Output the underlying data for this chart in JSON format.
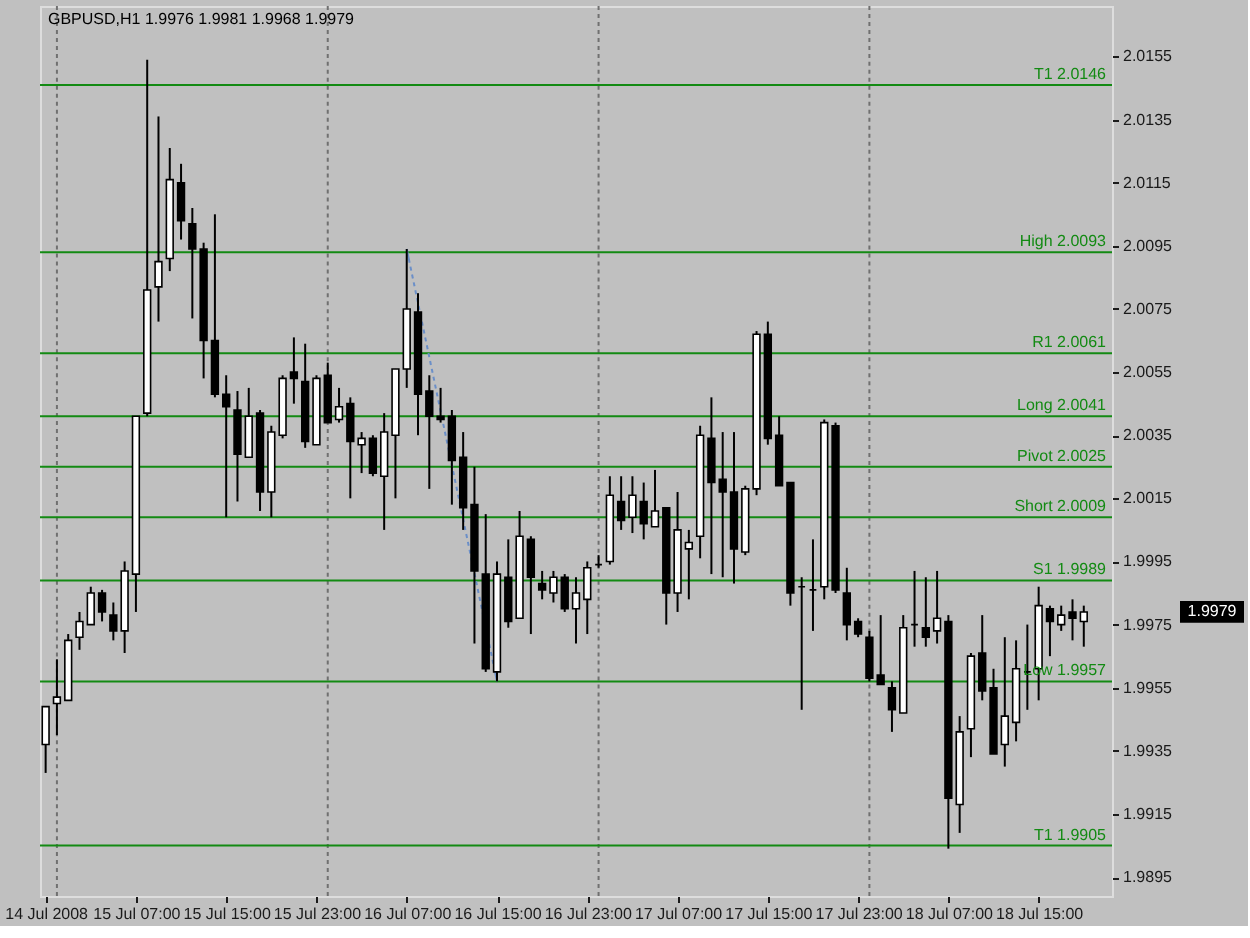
{
  "chart_data": {
    "type": "candlestick",
    "title": "GBPUSD,H1 1.9976 1.9981 1.9968 1.9979",
    "x": [
      "2008-07-14T23:00",
      "2008-07-15T00:00",
      "2008-07-15T01:00",
      "2008-07-15T02:00",
      "2008-07-15T03:00",
      "2008-07-15T04:00",
      "2008-07-15T05:00",
      "2008-07-15T06:00",
      "2008-07-15T07:00",
      "2008-07-15T08:00",
      "2008-07-15T09:00",
      "2008-07-15T10:00",
      "2008-07-15T11:00",
      "2008-07-15T12:00",
      "2008-07-15T13:00",
      "2008-07-15T14:00",
      "2008-07-15T15:00",
      "2008-07-15T16:00",
      "2008-07-15T17:00",
      "2008-07-15T18:00",
      "2008-07-15T19:00",
      "2008-07-15T20:00",
      "2008-07-15T21:00",
      "2008-07-15T22:00",
      "2008-07-15T23:00",
      "2008-07-16T00:00",
      "2008-07-16T01:00",
      "2008-07-16T02:00",
      "2008-07-16T03:00",
      "2008-07-16T04:00",
      "2008-07-16T05:00",
      "2008-07-16T06:00",
      "2008-07-16T07:00",
      "2008-07-16T08:00",
      "2008-07-16T09:00",
      "2008-07-16T10:00",
      "2008-07-16T11:00",
      "2008-07-16T12:00",
      "2008-07-16T13:00",
      "2008-07-16T14:00",
      "2008-07-16T15:00",
      "2008-07-16T16:00",
      "2008-07-16T17:00",
      "2008-07-16T18:00",
      "2008-07-16T19:00",
      "2008-07-16T20:00",
      "2008-07-16T21:00",
      "2008-07-16T22:00",
      "2008-07-16T23:00",
      "2008-07-17T00:00",
      "2008-07-17T01:00",
      "2008-07-17T02:00",
      "2008-07-17T03:00",
      "2008-07-17T04:00",
      "2008-07-17T05:00",
      "2008-07-17T06:00",
      "2008-07-17T07:00",
      "2008-07-17T08:00",
      "2008-07-17T09:00",
      "2008-07-17T10:00",
      "2008-07-17T11:00",
      "2008-07-17T12:00",
      "2008-07-17T13:00",
      "2008-07-17T14:00",
      "2008-07-17T15:00",
      "2008-07-17T16:00",
      "2008-07-17T17:00",
      "2008-07-17T18:00",
      "2008-07-17T19:00",
      "2008-07-17T20:00",
      "2008-07-17T21:00",
      "2008-07-17T22:00",
      "2008-07-17T23:00",
      "2008-07-18T00:00",
      "2008-07-18T01:00",
      "2008-07-18T02:00",
      "2008-07-18T03:00",
      "2008-07-18T04:00",
      "2008-07-18T05:00",
      "2008-07-18T06:00",
      "2008-07-18T07:00",
      "2008-07-18T08:00",
      "2008-07-18T09:00",
      "2008-07-18T10:00",
      "2008-07-18T11:00",
      "2008-07-18T12:00",
      "2008-07-18T13:00",
      "2008-07-18T14:00",
      "2008-07-18T15:00",
      "2008-07-18T16:00",
      "2008-07-18T17:00",
      "2008-07-18T18:00",
      "2008-07-18T19:00"
    ],
    "ohlc": [
      [
        1.9937,
        1.9949,
        1.9928,
        1.9949
      ],
      [
        1.995,
        1.9964,
        1.994,
        1.9952
      ],
      [
        1.9951,
        1.9972,
        1.9951,
        1.997
      ],
      [
        1.9971,
        1.9979,
        1.9967,
        1.9976
      ],
      [
        1.9975,
        1.9987,
        1.9975,
        1.9985
      ],
      [
        1.9985,
        1.9986,
        1.9976,
        1.9979
      ],
      [
        1.9978,
        1.9982,
        1.997,
        1.9973
      ],
      [
        1.9973,
        1.9995,
        1.9966,
        1.9992
      ],
      [
        1.9991,
        2.0041,
        1.9979,
        2.0041
      ],
      [
        2.0042,
        2.0154,
        2.0041,
        2.0081
      ],
      [
        2.0082,
        2.0136,
        2.0071,
        2.009
      ],
      [
        2.0091,
        2.0126,
        2.0087,
        2.0116
      ],
      [
        2.0115,
        2.0121,
        2.0097,
        2.0103
      ],
      [
        2.0102,
        2.0107,
        2.0072,
        2.0094
      ],
      [
        2.0094,
        2.0096,
        2.0053,
        2.0065
      ],
      [
        2.0065,
        2.0105,
        2.0047,
        2.0048
      ],
      [
        2.0048,
        2.0054,
        2.0009,
        2.0044
      ],
      [
        2.0043,
        2.0049,
        2.0014,
        2.0029
      ],
      [
        2.0028,
        2.005,
        2.0028,
        2.0041
      ],
      [
        2.0042,
        2.0043,
        2.0011,
        2.0017
      ],
      [
        2.0017,
        2.0038,
        2.0009,
        2.0036
      ],
      [
        2.0035,
        2.0054,
        2.0034,
        2.0053
      ],
      [
        2.0055,
        2.0066,
        2.0045,
        2.0053
      ],
      [
        2.0052,
        2.0064,
        2.0031,
        2.0033
      ],
      [
        2.0032,
        2.0054,
        2.0032,
        2.0053
      ],
      [
        2.0054,
        2.0058,
        2.0039,
        2.0039
      ],
      [
        2.004,
        2.005,
        2.0039,
        2.0044
      ],
      [
        2.0045,
        2.0047,
        2.0015,
        2.0033
      ],
      [
        2.0032,
        2.0036,
        2.0023,
        2.0034
      ],
      [
        2.0034,
        2.0035,
        2.0022,
        2.0023
      ],
      [
        2.0022,
        2.0042,
        2.0005,
        2.0036
      ],
      [
        2.0035,
        2.0056,
        2.0015,
        2.0056
      ],
      [
        2.0056,
        2.0094,
        2.005,
        2.0075
      ],
      [
        2.0074,
        2.008,
        2.0035,
        2.0048
      ],
      [
        2.0049,
        2.0054,
        2.0018,
        2.0041
      ],
      [
        2.0041,
        2.005,
        2.0039,
        2.004
      ],
      [
        2.0041,
        2.0043,
        2.0013,
        2.0027
      ],
      [
        2.0028,
        2.0036,
        2.0005,
        2.0012
      ],
      [
        2.0013,
        2.0025,
        1.9969,
        1.9992
      ],
      [
        1.9991,
        2.001,
        1.996,
        1.9961
      ],
      [
        1.996,
        1.9995,
        1.9957,
        1.9991
      ],
      [
        1.999,
        2.0002,
        1.9974,
        1.9976
      ],
      [
        1.9977,
        2.0011,
        1.9977,
        2.0003
      ],
      [
        2.0002,
        2.0003,
        1.9972,
        1.999
      ],
      [
        1.9988,
        1.9992,
        1.9983,
        1.9986
      ],
      [
        1.9985,
        1.9992,
        1.9982,
        1.999
      ],
      [
        1.999,
        1.9991,
        1.9979,
        1.998
      ],
      [
        1.998,
        1.999,
        1.9969,
        1.9985
      ],
      [
        1.9983,
        1.9995,
        1.9972,
        1.9993
      ],
      [
        1.9994,
        1.9997,
        1.9993,
        1.9994
      ],
      [
        1.9995,
        2.0022,
        1.9994,
        2.0016
      ],
      [
        2.0014,
        2.0022,
        2.0005,
        2.0008
      ],
      [
        2.0009,
        2.0022,
        2.0004,
        2.0016
      ],
      [
        2.0014,
        2.002,
        2.0002,
        2.0007
      ],
      [
        2.0006,
        2.0024,
        2.0006,
        2.0011
      ],
      [
        2.0012,
        2.0012,
        1.9975,
        1.9985
      ],
      [
        1.9985,
        2.0017,
        1.9979,
        2.0005
      ],
      [
        1.9999,
        2.0005,
        1.9983,
        2.0001
      ],
      [
        2.0003,
        2.0038,
        1.9996,
        2.0035
      ],
      [
        2.0034,
        2.0047,
        1.9991,
        2.002
      ],
      [
        2.0021,
        2.0036,
        1.999,
        2.0017
      ],
      [
        2.0017,
        2.0036,
        1.9988,
        1.9999
      ],
      [
        1.9998,
        2.0019,
        1.9997,
        2.0018
      ],
      [
        2.0018,
        2.0068,
        2.0016,
        2.0067
      ],
      [
        2.0067,
        2.0071,
        2.0032,
        2.0034
      ],
      [
        2.0035,
        2.0041,
        2.0019,
        2.0019
      ],
      [
        2.002,
        2.002,
        1.9981,
        1.9985
      ],
      [
        1.9987,
        1.999,
        1.9948,
        1.9987
      ],
      [
        1.9986,
        2.0002,
        1.9973,
        1.9986
      ],
      [
        1.9987,
        2.004,
        1.9983,
        2.0039
      ],
      [
        2.0038,
        2.0039,
        1.9985,
        1.9986
      ],
      [
        1.9985,
        1.9993,
        1.997,
        1.9975
      ],
      [
        1.9976,
        1.9977,
        1.9971,
        1.9972
      ],
      [
        1.9971,
        1.9973,
        1.9957,
        1.9958
      ],
      [
        1.9959,
        1.9978,
        1.9956,
        1.9956
      ],
      [
        1.9955,
        1.9957,
        1.9941,
        1.9948
      ],
      [
        1.9947,
        1.9978,
        1.9947,
        1.9974
      ],
      [
        1.9975,
        1.9992,
        1.9968,
        1.9975
      ],
      [
        1.9974,
        1.999,
        1.9968,
        1.9971
      ],
      [
        1.9973,
        1.9992,
        1.9969,
        1.9977
      ],
      [
        1.9976,
        1.9978,
        1.9904,
        1.992
      ],
      [
        1.9918,
        1.9946,
        1.9909,
        1.9941
      ],
      [
        1.9942,
        1.9966,
        1.9933,
        1.9965
      ],
      [
        1.9966,
        1.9978,
        1.9951,
        1.9954
      ],
      [
        1.9955,
        1.9961,
        1.9934,
        1.9934
      ],
      [
        1.9937,
        1.9971,
        1.993,
        1.9946
      ],
      [
        1.9944,
        1.997,
        1.9938,
        1.9961
      ],
      [
        1.996,
        1.9975,
        1.9948,
        1.996
      ],
      [
        1.9961,
        1.9987,
        1.9951,
        1.9981
      ],
      [
        1.998,
        1.9981,
        1.9965,
        1.9976
      ],
      [
        1.9975,
        1.9981,
        1.9973,
        1.9978
      ],
      [
        1.9979,
        1.9983,
        1.997,
        1.9977
      ],
      [
        1.9976,
        1.9981,
        1.9968,
        1.9979
      ]
    ],
    "xlim": [
      "2008-07-14T22:30",
      "2008-07-18T21:30"
    ],
    "xticks": [
      {
        "value": "2008-07-14T23:00",
        "label": "14 Jul 2008"
      },
      {
        "value": "2008-07-15T07:00",
        "label": "15 Jul 07:00"
      },
      {
        "value": "2008-07-15T15:00",
        "label": "15 Jul 15:00"
      },
      {
        "value": "2008-07-15T23:00",
        "label": "15 Jul 23:00"
      },
      {
        "value": "2008-07-16T07:00",
        "label": "16 Jul 07:00"
      },
      {
        "value": "2008-07-16T15:00",
        "label": "16 Jul 15:00"
      },
      {
        "value": "2008-07-16T23:00",
        "label": "16 Jul 23:00"
      },
      {
        "value": "2008-07-17T07:00",
        "label": "17 Jul 07:00"
      },
      {
        "value": "2008-07-17T15:00",
        "label": "17 Jul 15:00"
      },
      {
        "value": "2008-07-17T23:00",
        "label": "17 Jul 23:00"
      },
      {
        "value": "2008-07-18T07:00",
        "label": "18 Jul 07:00"
      },
      {
        "value": "2008-07-18T15:00",
        "label": "18 Jul 15:00"
      }
    ],
    "ylim": [
      1.9889,
      2.0171
    ],
    "yticks": [
      2.0155,
      2.0135,
      2.0115,
      2.0095,
      2.0075,
      2.0055,
      2.0035,
      2.0015,
      1.9995,
      1.9975,
      1.9955,
      1.9935,
      1.9915,
      1.9895
    ],
    "ref_lines": [
      {
        "axis": "x",
        "value": "2008-07-15T00:00",
        "color": "#707070",
        "line_style": "dotted"
      },
      {
        "axis": "x",
        "value": "2008-07-16T00:00",
        "color": "#707070",
        "line_style": "dotted"
      },
      {
        "axis": "x",
        "value": "2008-07-17T00:00",
        "color": "#707070",
        "line_style": "dotted"
      },
      {
        "axis": "x",
        "value": "2008-07-18T00:00",
        "color": "#707070",
        "line_style": "dotted"
      },
      {
        "axis": "y",
        "value": 2.0146,
        "label": "T1 2.0146",
        "color": "#138a13"
      },
      {
        "axis": "y",
        "value": 2.0093,
        "label": "High 2.0093",
        "color": "#138a13"
      },
      {
        "axis": "y",
        "value": 2.0061,
        "label": "R1 2.0061",
        "color": "#138a13"
      },
      {
        "axis": "y",
        "value": 2.0041,
        "label": "Long 2.0041",
        "color": "#138a13"
      },
      {
        "axis": "y",
        "value": 2.0025,
        "label": "Pivot 2.0025",
        "color": "#138a13"
      },
      {
        "axis": "y",
        "value": 2.0009,
        "label": "Short 2.0009",
        "color": "#138a13"
      },
      {
        "axis": "y",
        "value": 1.9989,
        "label": "S1 1.9989",
        "color": "#138a13"
      },
      {
        "axis": "y",
        "value": 1.9957,
        "label": "Low 1.9957",
        "color": "#138a13"
      },
      {
        "axis": "y",
        "value": 1.9905,
        "label": "T1 1.9905",
        "color": "#138a13"
      }
    ],
    "series": [
      {
        "type": "line",
        "x": [
          "2008-07-16T07:00",
          "2008-07-16T15:00"
        ],
        "values": [
          2.0094,
          1.9957
        ],
        "color": "#6b8fc8",
        "line_style": "dotted"
      }
    ],
    "annotations": [
      "1.9979"
    ]
  }
}
